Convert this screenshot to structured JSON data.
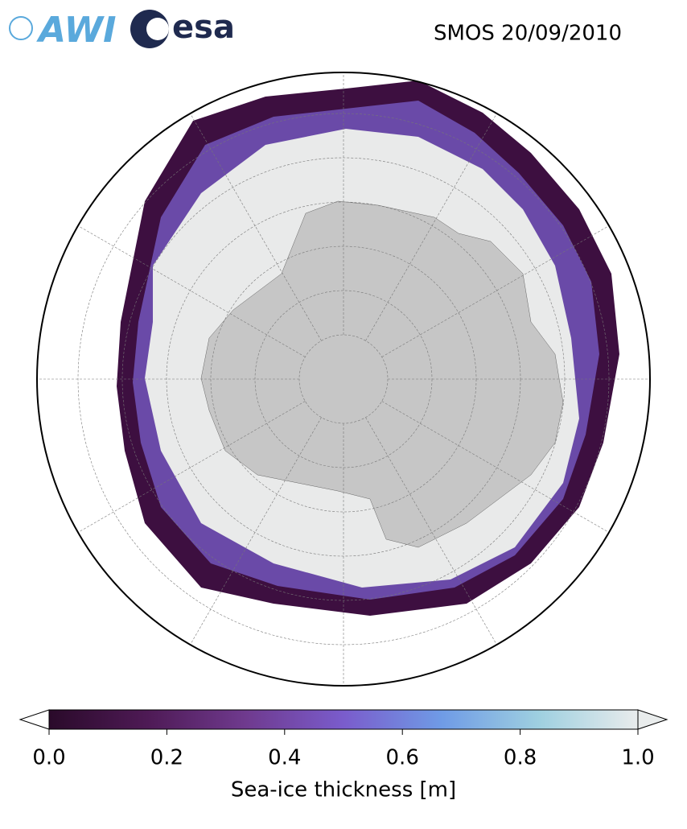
{
  "header": {
    "logos": [
      "AWI",
      "esa"
    ],
    "title": "SMOS 20/09/2010"
  },
  "colorbar": {
    "label": "Sea-ice thickness [m]",
    "lim": [
      0,
      1
    ],
    "ticks": [
      {
        "value": 0,
        "label": "0.0"
      },
      {
        "value": 0.2,
        "label": "0.2"
      },
      {
        "value": 0.4,
        "label": "0.4"
      },
      {
        "value": 0.6,
        "label": "0.6"
      },
      {
        "value": 0.8,
        "label": "0.8"
      },
      {
        "value": 1,
        "label": "1.0"
      }
    ],
    "colors": [
      "#2a0a2a",
      "#4e1a55",
      "#6f3a8e",
      "#7a5ccc",
      "#6f9be6",
      "#9fd0e0",
      "#e9ecec"
    ]
  }
}
